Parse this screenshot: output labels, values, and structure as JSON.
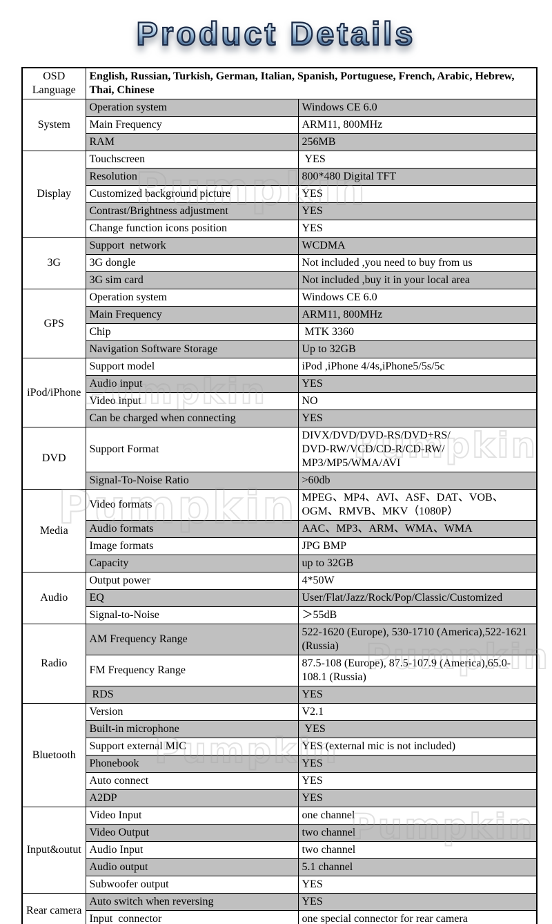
{
  "title": "Product Details",
  "watermark": {
    "text": "Pumpkin"
  },
  "colors": {
    "row_shade": "#c0c0c0",
    "border": "#000000",
    "title_light": "#d7e7f3",
    "title_mid": "#9dbcd8",
    "title_dark": "#1c2b46"
  },
  "table": {
    "sections": [
      {
        "category": "OSD Language",
        "rows": [
          {
            "label": null,
            "value": "English, Russian, Turkish, German, Italian, Spanish, Portuguese, French, Arabic, Hebrew, Thai, Chinese",
            "span": true,
            "bold": true
          }
        ]
      },
      {
        "category": "System",
        "rows": [
          {
            "label": "Operation system",
            "value": "Windows CE 6.0"
          },
          {
            "label": "Main Frequency",
            "value": "ARM11, 800MHz"
          },
          {
            "label": "RAM",
            "value": "256MB"
          }
        ]
      },
      {
        "category": "Display",
        "rows": [
          {
            "label": "Touchscreen",
            "value": " YES"
          },
          {
            "label": "Resolution",
            "value": "800*480 Digital TFT"
          },
          {
            "label": "Customized background picture",
            "value": "YES"
          },
          {
            "label": "Contrast/Brightness adjustment",
            "value": "YES"
          },
          {
            "label": "Change function icons position",
            "value": "YES"
          }
        ]
      },
      {
        "category": "3G",
        "rows": [
          {
            "label": "Support  network",
            "value": "WCDMA"
          },
          {
            "label": "3G dongle",
            "value": "Not included ,you need to buy from us"
          },
          {
            "label": "3G sim card",
            "value": "Not included ,buy it in your local area"
          }
        ]
      },
      {
        "category": "GPS",
        "rows": [
          {
            "label": "Operation system",
            "value": "Windows CE 6.0"
          },
          {
            "label": "Main Frequency",
            "value": "ARM11, 800MHz"
          },
          {
            "label": "Chip",
            "value": " MTK 3360"
          },
          {
            "label": "Navigation Software Storage",
            "value": "Up to 32GB"
          }
        ]
      },
      {
        "category": "iPod/iPhone",
        "rows": [
          {
            "label": "Support model",
            "value": "iPod ,iPhone 4/4s,iPhone5/5s/5c"
          },
          {
            "label": "Audio input",
            "value": "YES"
          },
          {
            "label": "Video input",
            "value": "NO"
          },
          {
            "label": "Can be charged when connecting",
            "value": "YES"
          }
        ]
      },
      {
        "category": "DVD",
        "rows": [
          {
            "label": "Support Format",
            "value": "DIVX/DVD/DVD-RS/DVD+RS/\nDVD-RW/VCD/CD-R/CD-RW/\nMP3/MP5/WMA/AVI"
          },
          {
            "label": "Signal-To-Noise Ratio",
            "value": ">60db"
          }
        ]
      },
      {
        "category": "Media",
        "rows": [
          {
            "label": "Video formats",
            "value": "MPEG、MP4、AVI、ASF、DAT、VOB、OGM、RMVB、MKV（1080P）"
          },
          {
            "label": "Audio formats",
            "value": "AAC、MP3、ARM、WMA、WMA"
          },
          {
            "label": "Image formats",
            "value": "JPG BMP"
          },
          {
            "label": "Capacity",
            "value": "up to 32GB"
          }
        ]
      },
      {
        "category": "Audio",
        "rows": [
          {
            "label": "Output power",
            "value": "4*50W"
          },
          {
            "label": "EQ",
            "value": "User/Flat/Jazz/Rock/Pop/Classic/Customized"
          },
          {
            "label": "Signal-to-Noise",
            "value": "＞55dB"
          }
        ]
      },
      {
        "category": "Radio",
        "rows": [
          {
            "label": "AM Frequency Range",
            "value": "522-1620 (Europe), 530-1710 (America),522-1621 (Russia)"
          },
          {
            "label": "FM Frequency Range",
            "value": "87.5-108 (Europe), 87.5-107.9 (America),65.0-108.1 (Russia)"
          },
          {
            "label": " RDS",
            "value": "YES"
          }
        ]
      },
      {
        "category": "Bluetooth",
        "rows": [
          {
            "label": "Version",
            "value": "V2.1"
          },
          {
            "label": "Built-in microphone",
            "value": " YES"
          },
          {
            "label": "Support external MIC",
            "value": "YES (external mic is not included)"
          },
          {
            "label": "Phonebook",
            "value": "YES"
          },
          {
            "label": "Auto connect",
            "value": "YES"
          },
          {
            "label": "A2DP",
            "value": "YES"
          }
        ]
      },
      {
        "category": "Input&outut",
        "rows": [
          {
            "label": "Video Input",
            "value": "one channel"
          },
          {
            "label": "Video Output",
            "value": "two channel"
          },
          {
            "label": "Audio Input",
            "value": "two channel"
          },
          {
            "label": "Audio output",
            "value": "5.1 channel"
          },
          {
            "label": "Subwoofer output",
            "value": "YES"
          }
        ]
      },
      {
        "category": "Rear camera",
        "rows": [
          {
            "label": "Auto switch when reversing",
            "value": "YES"
          },
          {
            "label": "Input  connector",
            "value": "one special connector for rear camera"
          }
        ]
      }
    ]
  }
}
